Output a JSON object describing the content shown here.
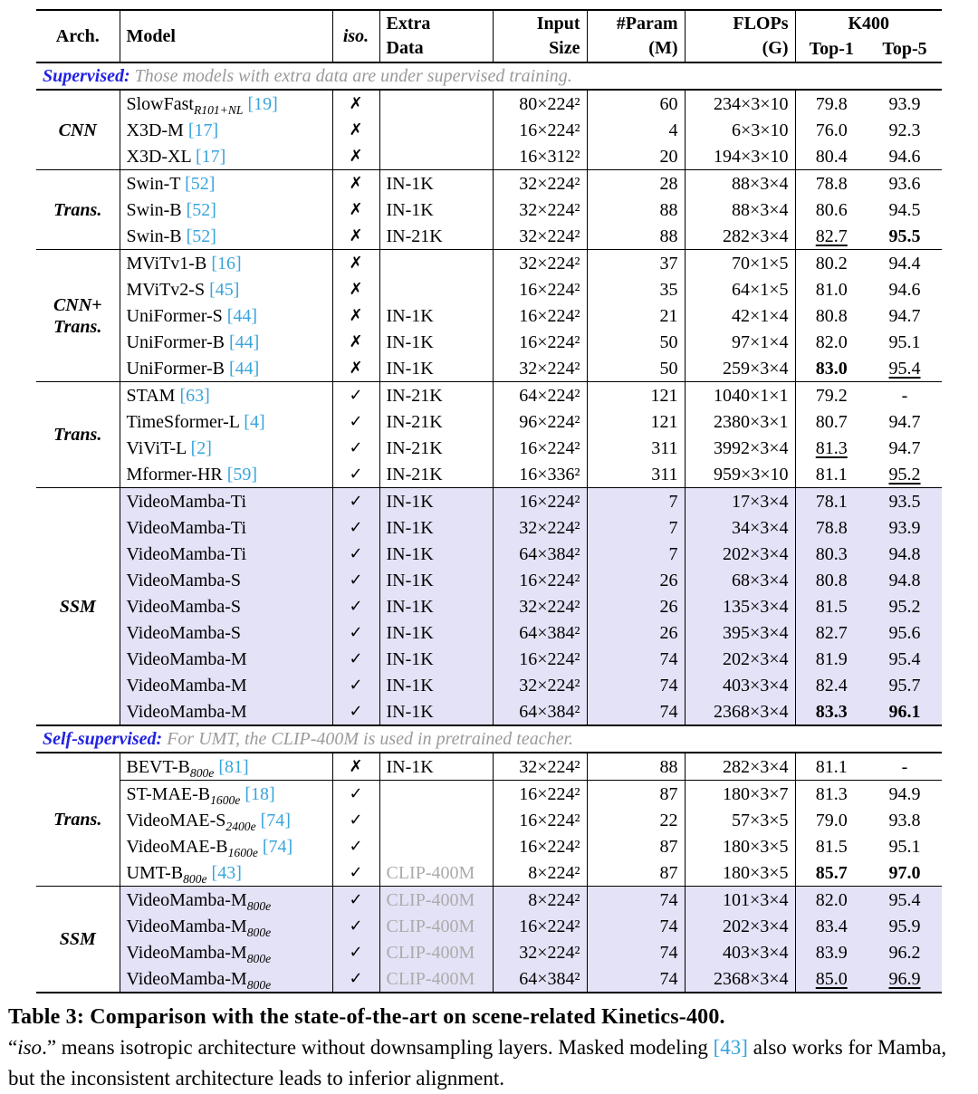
{
  "colors": {
    "cite": "#37a4dc",
    "section_label": "#2222e0",
    "section_note": "#9a9a9a",
    "highlight": "#e4e2f6",
    "gray_text": "#ababab"
  },
  "header": {
    "arch": "Arch.",
    "model": "Model",
    "iso": "iso.",
    "extra": [
      "Extra",
      "Data"
    ],
    "input": [
      "Input",
      "Size"
    ],
    "param": [
      "#Param",
      "(M)"
    ],
    "flops": [
      "FLOPs",
      "(G)"
    ],
    "k400": "K400",
    "top1": "Top-1",
    "top5": "Top-5"
  },
  "sections": [
    {
      "label": "Supervised:",
      "note": "Those models with extra data are under supervised training.",
      "groups": [
        {
          "arch": [
            "CNN"
          ],
          "highlight": false,
          "rows": [
            {
              "model": "SlowFast",
              "sub": "R101+NL",
              "cite": "[19]",
              "iso": "✗",
              "extra": "",
              "input": "80×224²",
              "param": "60",
              "flops": "234×3×10",
              "top1": "79.8",
              "top5": "93.9"
            },
            {
              "model": "X3D-M",
              "cite": "[17]",
              "iso": "✗",
              "extra": "",
              "input": "16×224²",
              "param": "4",
              "flops": "6×3×10",
              "top1": "76.0",
              "top5": "92.3"
            },
            {
              "model": "X3D-XL",
              "cite": "[17]",
              "iso": "✗",
              "extra": "",
              "input": "16×312²",
              "param": "20",
              "flops": "194×3×10",
              "top1": "80.4",
              "top5": "94.6"
            }
          ]
        },
        {
          "arch": [
            "Trans."
          ],
          "highlight": false,
          "rows": [
            {
              "model": "Swin-T",
              "cite": "[52]",
              "iso": "✗",
              "extra": "IN-1K",
              "input": "32×224²",
              "param": "28",
              "flops": "88×3×4",
              "top1": "78.8",
              "top5": "93.6"
            },
            {
              "model": "Swin-B",
              "cite": "[52]",
              "iso": "✗",
              "extra": "IN-1K",
              "input": "32×224²",
              "param": "88",
              "flops": "88×3×4",
              "top1": "80.6",
              "top5": "94.5"
            },
            {
              "model": "Swin-B",
              "cite": "[52]",
              "iso": "✗",
              "extra": "IN-21K",
              "input": "32×224²",
              "param": "88",
              "flops": "282×3×4",
              "top1": "82.7",
              "top1_style": "underline",
              "top5": "95.5",
              "top5_style": "bold"
            }
          ]
        },
        {
          "arch": [
            "CNN+",
            "Trans."
          ],
          "highlight": false,
          "rows": [
            {
              "model": "MViTv1-B",
              "cite": "[16]",
              "iso": "✗",
              "extra": "",
              "input": "32×224²",
              "param": "37",
              "flops": "70×1×5",
              "top1": "80.2",
              "top5": "94.4"
            },
            {
              "model": "MViTv2-S",
              "cite": "[45]",
              "iso": "✗",
              "extra": "",
              "input": "16×224²",
              "param": "35",
              "flops": "64×1×5",
              "top1": "81.0",
              "top5": "94.6"
            },
            {
              "model": "UniFormer-S",
              "cite": "[44]",
              "iso": "✗",
              "extra": "IN-1K",
              "input": "16×224²",
              "param": "21",
              "flops": "42×1×4",
              "top1": "80.8",
              "top5": "94.7"
            },
            {
              "model": "UniFormer-B",
              "cite": "[44]",
              "iso": "✗",
              "extra": "IN-1K",
              "input": "16×224²",
              "param": "50",
              "flops": "97×1×4",
              "top1": "82.0",
              "top5": "95.1"
            },
            {
              "model": "UniFormer-B",
              "cite": "[44]",
              "iso": "✗",
              "extra": "IN-1K",
              "input": "32×224²",
              "param": "50",
              "flops": "259×3×4",
              "top1": "83.0",
              "top1_style": "bold",
              "top5": "95.4",
              "top5_style": "underline"
            }
          ]
        },
        {
          "arch": [
            "Trans."
          ],
          "highlight": false,
          "rows": [
            {
              "model": "STAM",
              "cite": "[63]",
              "iso": "✓",
              "extra": "IN-21K",
              "input": "64×224²",
              "param": "121",
              "flops": "1040×1×1",
              "top1": "79.2",
              "top5": "-"
            },
            {
              "model": "TimeSformer-L",
              "cite": "[4]",
              "iso": "✓",
              "extra": "IN-21K",
              "input": "96×224²",
              "param": "121",
              "flops": "2380×3×1",
              "top1": "80.7",
              "top5": "94.7"
            },
            {
              "model": "ViViT-L",
              "cite": "[2]",
              "iso": "✓",
              "extra": "IN-21K",
              "input": "16×224²",
              "param": "311",
              "flops": "3992×3×4",
              "top1": "81.3",
              "top1_style": "underline",
              "top5": "94.7"
            },
            {
              "model": "Mformer-HR",
              "cite": "[59]",
              "iso": "✓",
              "extra": "IN-21K",
              "input": "16×336²",
              "param": "311",
              "flops": "959×3×10",
              "top1": "81.1",
              "top5": "95.2",
              "top5_style": "underline"
            }
          ]
        },
        {
          "arch": [
            "SSM"
          ],
          "highlight": true,
          "rows": [
            {
              "model": "VideoMamba-Ti",
              "iso": "✓",
              "extra": "IN-1K",
              "input": "16×224²",
              "param": "7",
              "flops": "17×3×4",
              "top1": "78.1",
              "top5": "93.5"
            },
            {
              "model": "VideoMamba-Ti",
              "iso": "✓",
              "extra": "IN-1K",
              "input": "32×224²",
              "param": "7",
              "flops": "34×3×4",
              "top1": "78.8",
              "top5": "93.9"
            },
            {
              "model": "VideoMamba-Ti",
              "iso": "✓",
              "extra": "IN-1K",
              "input": "64×384²",
              "param": "7",
              "flops": "202×3×4",
              "top1": "80.3",
              "top5": "94.8"
            },
            {
              "model": "VideoMamba-S",
              "iso": "✓",
              "extra": "IN-1K",
              "input": "16×224²",
              "param": "26",
              "flops": "68×3×4",
              "top1": "80.8",
              "top5": "94.8"
            },
            {
              "model": "VideoMamba-S",
              "iso": "✓",
              "extra": "IN-1K",
              "input": "32×224²",
              "param": "26",
              "flops": "135×3×4",
              "top1": "81.5",
              "top5": "95.2"
            },
            {
              "model": "VideoMamba-S",
              "iso": "✓",
              "extra": "IN-1K",
              "input": "64×384²",
              "param": "26",
              "flops": "395×3×4",
              "top1": "82.7",
              "top5": "95.6"
            },
            {
              "model": "VideoMamba-M",
              "iso": "✓",
              "extra": "IN-1K",
              "input": "16×224²",
              "param": "74",
              "flops": "202×3×4",
              "top1": "81.9",
              "top5": "95.4"
            },
            {
              "model": "VideoMamba-M",
              "iso": "✓",
              "extra": "IN-1K",
              "input": "32×224²",
              "param": "74",
              "flops": "403×3×4",
              "top1": "82.4",
              "top5": "95.7"
            },
            {
              "model": "VideoMamba-M",
              "iso": "✓",
              "extra": "IN-1K",
              "input": "64×384²",
              "param": "74",
              "flops": "2368×3×4",
              "top1": "83.3",
              "top1_style": "bold",
              "top5": "96.1",
              "top5_style": "bold"
            }
          ]
        }
      ]
    },
    {
      "label": "Self-supervised:",
      "note": "For UMT, the CLIP-400M is used in pretrained teacher.",
      "groups": [
        {
          "arch": [
            "Trans."
          ],
          "highlight": false,
          "rows": [
            {
              "model": "BEVT-B",
              "sub": "800e",
              "cite": "[81]",
              "iso": "✗",
              "extra": "IN-1K",
              "input": "32×224²",
              "param": "88",
              "flops": "282×3×4",
              "top1": "81.1",
              "top5": "-",
              "cline": true
            },
            {
              "model": "ST-MAE-B",
              "sub": "1600e",
              "cite": "[18]",
              "iso": "✓",
              "extra": "",
              "input": "16×224²",
              "param": "87",
              "flops": "180×3×7",
              "top1": "81.3",
              "top5": "94.9"
            },
            {
              "model": "VideoMAE-S",
              "sub": "2400e",
              "cite": "[74]",
              "iso": "✓",
              "extra": "",
              "input": "16×224²",
              "param": "22",
              "flops": "57×3×5",
              "top1": "79.0",
              "top5": "93.8"
            },
            {
              "model": "VideoMAE-B",
              "sub": "1600e",
              "cite": "[74]",
              "iso": "✓",
              "extra": "",
              "input": "16×224²",
              "param": "87",
              "flops": "180×3×5",
              "top1": "81.5",
              "top5": "95.1"
            },
            {
              "model": "UMT-B",
              "sub": "800e",
              "cite": "[43]",
              "iso": "✓",
              "extra": "CLIP-400M",
              "extra_gray": true,
              "input": "8×224²",
              "param": "87",
              "flops": "180×3×5",
              "top1": "85.7",
              "top1_style": "bold",
              "top5": "97.0",
              "top5_style": "bold"
            }
          ]
        },
        {
          "arch": [
            "SSM"
          ],
          "highlight": true,
          "rows": [
            {
              "model": "VideoMamba-M",
              "sub": "800e",
              "iso": "✓",
              "extra": "CLIP-400M",
              "extra_gray": true,
              "input": "8×224²",
              "param": "74",
              "flops": "101×3×4",
              "top1": "82.0",
              "top5": "95.4"
            },
            {
              "model": "VideoMamba-M",
              "sub": "800e",
              "iso": "✓",
              "extra": "CLIP-400M",
              "extra_gray": true,
              "input": "16×224²",
              "param": "74",
              "flops": "202×3×4",
              "top1": "83.4",
              "top5": "95.9"
            },
            {
              "model": "VideoMamba-M",
              "sub": "800e",
              "iso": "✓",
              "extra": "CLIP-400M",
              "extra_gray": true,
              "input": "32×224²",
              "param": "74",
              "flops": "403×3×4",
              "top1": "83.9",
              "top5": "96.2"
            },
            {
              "model": "VideoMamba-M",
              "sub": "800e",
              "iso": "✓",
              "extra": "CLIP-400M",
              "extra_gray": true,
              "input": "64×384²",
              "param": "74",
              "flops": "2368×3×4",
              "top1": "85.0",
              "top1_style": "underline",
              "top5": "96.9",
              "top5_style": "underline"
            }
          ]
        }
      ]
    }
  ],
  "caption": {
    "title": "Table 3: Comparison with the state-of-the-art on scene-related Kinetics-400.",
    "parts": [
      {
        "t": "“",
        "s": ""
      },
      {
        "t": "iso",
        "s": "i"
      },
      {
        "t": ".” means isotropic architecture without downsampling layers. Masked modeling ",
        "s": ""
      },
      {
        "t": "[43]",
        "s": "c"
      },
      {
        "t": " also works for Mamba, but the inconsistent architecture leads to inferior alignment.",
        "s": ""
      }
    ]
  }
}
